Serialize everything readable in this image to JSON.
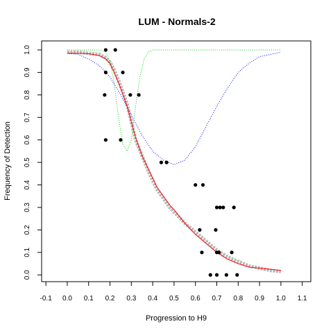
{
  "chart_data": {
    "type": "scatter",
    "title": "LUM - Normals-2",
    "xlabel": "Progression to H9",
    "ylabel": "Frequency of Detection",
    "xlim": [
      -0.12,
      1.14
    ],
    "ylim": [
      -0.03,
      1.04
    ],
    "x_ticks": [
      -0.1,
      0.0,
      0.1,
      0.2,
      0.3,
      0.4,
      0.5,
      0.6,
      0.7,
      0.8,
      0.9,
      1.0,
      1.1
    ],
    "x_tick_labels": [
      "-0.1",
      "0.0",
      "0.1",
      "0.2",
      "0.3",
      "0.4",
      "0.5",
      "0.6",
      "0.7",
      "0.8",
      "0.9",
      "1.0",
      "1.1"
    ],
    "y_ticks": [
      0.0,
      0.1,
      0.2,
      0.3,
      0.4,
      0.5,
      0.6,
      0.7,
      0.8,
      0.9,
      1.0
    ],
    "y_tick_labels": [
      "0.0",
      "0.1",
      "0.2",
      "0.3",
      "0.4",
      "0.5",
      "0.6",
      "0.7",
      "0.8",
      "0.9",
      "1.0"
    ],
    "colors": {
      "points": "#000000",
      "gray_band": "#b8b8b8",
      "fit_line": "#ff0000",
      "blue_curve": "#0000ff",
      "green_curve": "#00cc00"
    },
    "points": [
      {
        "x": 0.18,
        "y": 1.0
      },
      {
        "x": 0.225,
        "y": 1.0
      },
      {
        "x": 0.18,
        "y": 0.9
      },
      {
        "x": 0.26,
        "y": 0.9
      },
      {
        "x": 0.175,
        "y": 0.8
      },
      {
        "x": 0.295,
        "y": 0.8
      },
      {
        "x": 0.335,
        "y": 0.8
      },
      {
        "x": 0.18,
        "y": 0.6
      },
      {
        "x": 0.25,
        "y": 0.6
      },
      {
        "x": 0.44,
        "y": 0.5
      },
      {
        "x": 0.465,
        "y": 0.5
      },
      {
        "x": 0.6,
        "y": 0.4
      },
      {
        "x": 0.635,
        "y": 0.4
      },
      {
        "x": 0.7,
        "y": 0.3
      },
      {
        "x": 0.715,
        "y": 0.3
      },
      {
        "x": 0.73,
        "y": 0.3
      },
      {
        "x": 0.78,
        "y": 0.3
      },
      {
        "x": 0.62,
        "y": 0.2
      },
      {
        "x": 0.695,
        "y": 0.2
      },
      {
        "x": 0.63,
        "y": 0.1
      },
      {
        "x": 0.7,
        "y": 0.1
      },
      {
        "x": 0.71,
        "y": 0.1
      },
      {
        "x": 0.77,
        "y": 0.1
      },
      {
        "x": 0.67,
        "y": 0.0
      },
      {
        "x": 0.7,
        "y": 0.0
      },
      {
        "x": 0.745,
        "y": 0.0
      },
      {
        "x": 0.795,
        "y": 0.0
      }
    ],
    "series": [
      {
        "kind": "gray-band",
        "x": [
          0.0,
          0.05,
          0.1,
          0.15,
          0.18,
          0.2,
          0.22,
          0.25,
          0.28,
          0.3,
          0.32,
          0.35,
          0.38,
          0.4,
          0.42,
          0.45,
          0.48,
          0.5,
          0.55,
          0.6,
          0.65,
          0.7,
          0.75,
          0.8,
          0.85,
          0.9,
          0.95,
          1.0
        ],
        "y": [
          0.99,
          0.99,
          0.985,
          0.98,
          0.965,
          0.945,
          0.91,
          0.84,
          0.76,
          0.68,
          0.6,
          0.53,
          0.46,
          0.42,
          0.38,
          0.34,
          0.3,
          0.28,
          0.23,
          0.19,
          0.15,
          0.11,
          0.08,
          0.06,
          0.04,
          0.03,
          0.02,
          0.015
        ]
      },
      {
        "kind": "red-line",
        "x": [
          0.0,
          0.05,
          0.1,
          0.15,
          0.18,
          0.2,
          0.22,
          0.25,
          0.28,
          0.3,
          0.32,
          0.35,
          0.38,
          0.4,
          0.42,
          0.45,
          0.48,
          0.5,
          0.55,
          0.6,
          0.65,
          0.7,
          0.75,
          0.8,
          0.85,
          0.9,
          0.95,
          1.0
        ],
        "y": [
          0.985,
          0.985,
          0.983,
          0.975,
          0.96,
          0.94,
          0.9,
          0.83,
          0.75,
          0.68,
          0.61,
          0.53,
          0.47,
          0.43,
          0.39,
          0.35,
          0.31,
          0.29,
          0.23,
          0.18,
          0.14,
          0.1,
          0.07,
          0.05,
          0.035,
          0.03,
          0.025,
          0.02
        ]
      },
      {
        "kind": "blue-dotted",
        "x": [
          0.0,
          0.05,
          0.1,
          0.15,
          0.2,
          0.25,
          0.3,
          0.35,
          0.4,
          0.45,
          0.5,
          0.55,
          0.6,
          0.65,
          0.7,
          0.75,
          0.8,
          0.85,
          0.9,
          0.95,
          1.0
        ],
        "y": [
          0.985,
          0.98,
          0.96,
          0.93,
          0.88,
          0.8,
          0.71,
          0.62,
          0.55,
          0.51,
          0.49,
          0.51,
          0.57,
          0.66,
          0.75,
          0.83,
          0.9,
          0.94,
          0.97,
          0.98,
          0.99
        ]
      },
      {
        "kind": "green-dotted",
        "x": [
          0.0,
          0.1,
          0.15,
          0.18,
          0.2,
          0.22,
          0.24,
          0.26,
          0.28,
          0.3,
          0.32,
          0.34,
          0.36,
          0.38,
          0.4,
          0.45,
          0.5,
          0.6,
          0.8,
          1.0
        ],
        "y": [
          1.0,
          1.0,
          1.0,
          0.99,
          0.95,
          0.85,
          0.7,
          0.58,
          0.55,
          0.6,
          0.75,
          0.88,
          0.96,
          0.99,
          1.0,
          1.0,
          1.0,
          1.0,
          1.0,
          1.0
        ]
      }
    ]
  }
}
